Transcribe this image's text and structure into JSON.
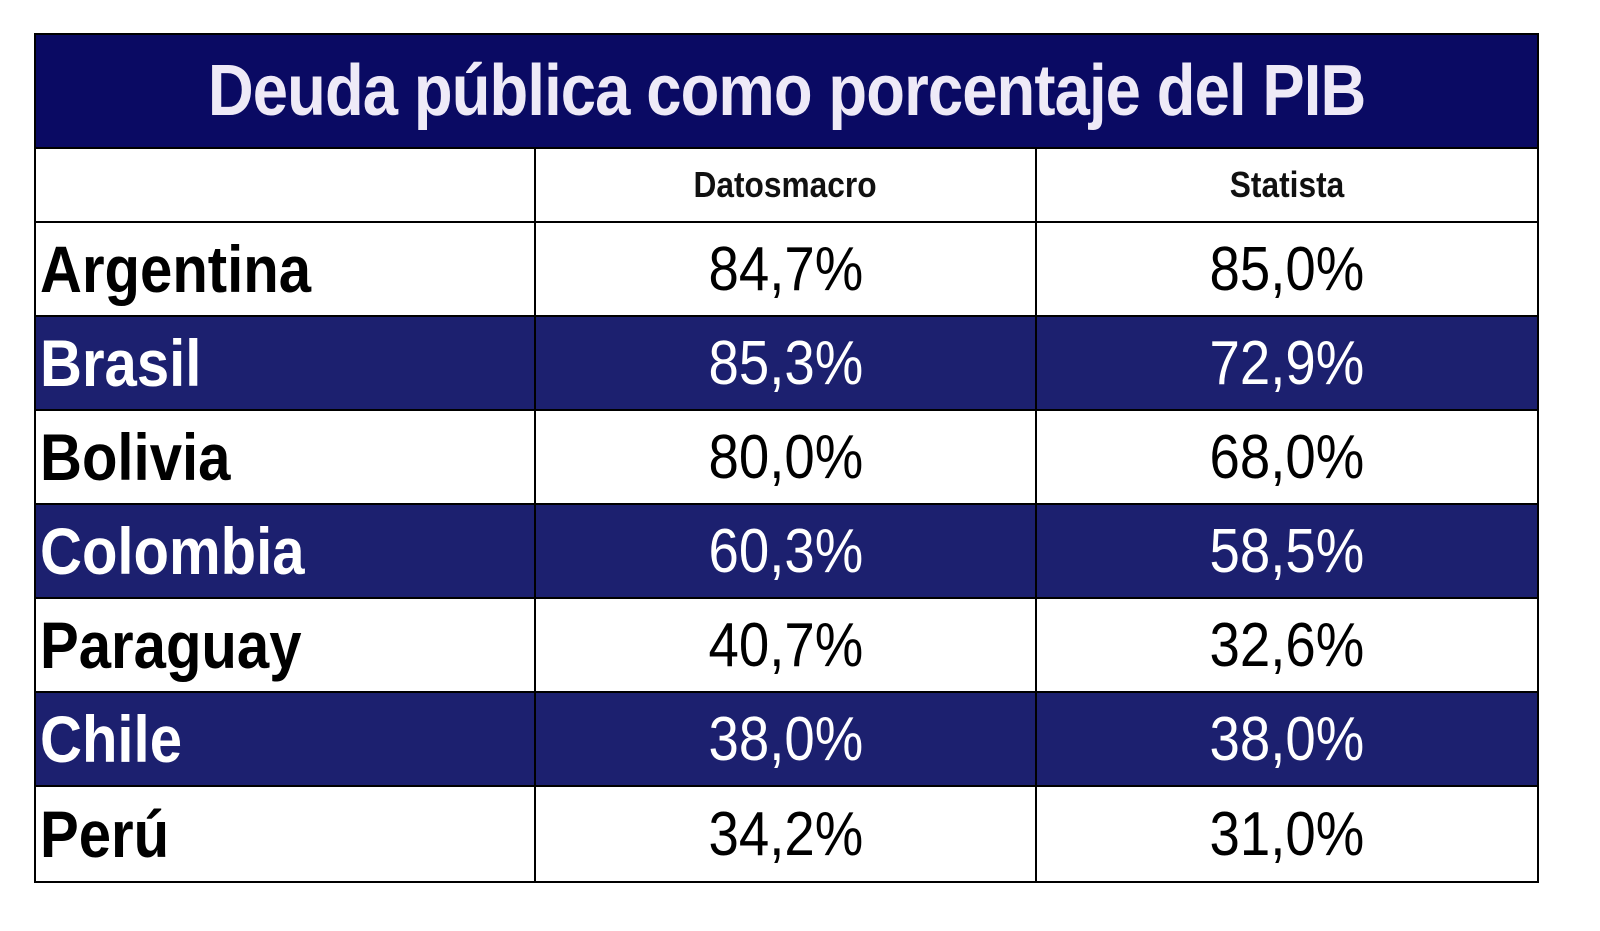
{
  "chart_data": {
    "type": "table",
    "title": "Deuda pública como porcentaje del PIB",
    "columns": [
      "",
      "Datosmacro",
      "Statista"
    ],
    "rows": [
      {
        "country": "Argentina",
        "datosmacro": "84,7%",
        "statista": "85,0%"
      },
      {
        "country": "Brasil",
        "datosmacro": "85,3%",
        "statista": "72,9%"
      },
      {
        "country": "Bolivia",
        "datosmacro": "80,0%",
        "statista": "68,0%"
      },
      {
        "country": "Colombia",
        "datosmacro": "60,3%",
        "statista": "58,5%"
      },
      {
        "country": "Paraguay",
        "datosmacro": "40,7%",
        "statista": "32,6%"
      },
      {
        "country": "Chile",
        "datosmacro": "38,0%",
        "statista": "38,0%"
      },
      {
        "country": "Perú",
        "datosmacro": "34,2%",
        "statista": "31,0%"
      }
    ],
    "series": [
      {
        "name": "Datosmacro",
        "values": [
          84.7,
          85.3,
          80.0,
          60.3,
          40.7,
          38.0,
          34.2
        ]
      },
      {
        "name": "Statista",
        "values": [
          85.0,
          72.9,
          68.0,
          58.5,
          32.6,
          38.0,
          31.0
        ]
      }
    ]
  },
  "colors": {
    "title_background": "#0a0a63",
    "title_text": "#eeeaf7",
    "band_background": "#1c206f",
    "band_text": "#ffffff"
  }
}
